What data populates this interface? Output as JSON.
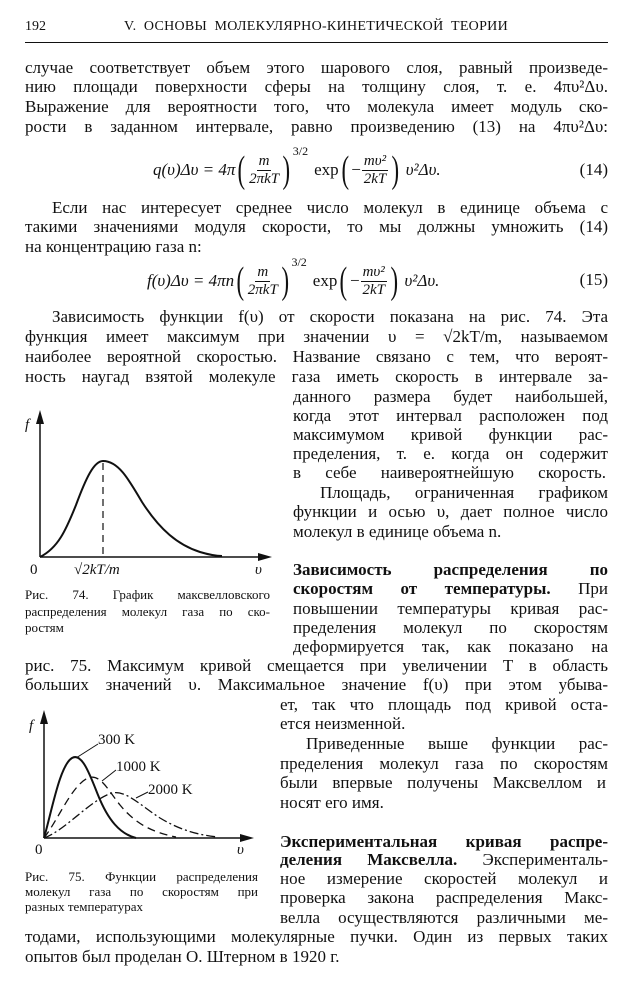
{
  "header": {
    "page_number": "192",
    "running_title": "V. ОСНОВЫ МОЛЕКУЛЯРНО-КИНЕТИЧЕСКОЙ ТЕОРИИ"
  },
  "p1": [
    "случае соответствует объем этого шарового слоя, равный произведе-",
    "нию площади поверхности сферы на толщину слоя, т. е. 4πυ²Δυ.",
    "Выражение для вероятности того, что молекула имеет модуль ско-",
    "рости в заданном интервале, равно произведению (13) на 4πυ²Δυ:"
  ],
  "eq14": {
    "lhs": "q(υ)Δυ = 4π",
    "frac1_num": "m",
    "frac1_den": "2πkT",
    "power": "3/2",
    "func": "exp",
    "sign": "−",
    "frac2_num": "mυ²",
    "frac2_den": "2kT",
    "tail": "υ²Δυ.",
    "number": "(14)"
  },
  "p2": [
    "Если нас интересует среднее число молекул в единице объема с",
    "такими значениями модуля скорости, то мы должны умножить (14)",
    "на концентрацию газа n:"
  ],
  "eq15": {
    "lhs": "f(υ)Δυ = 4πn",
    "frac1_num": "m",
    "frac1_den": "2πkT",
    "power": "3/2",
    "func": "exp",
    "sign": "−",
    "frac2_num": "mυ²",
    "frac2_den": "2kT",
    "tail": "υ²Δυ.",
    "number": "(15)"
  },
  "p3": [
    "Зависимость функции f(υ) от скорости показана на рис. 74. Эта",
    "функция имеет максимум при значении υ = √2kT/m, называемом",
    "наиболее вероятной скоростью. Название связано с тем, что вероят-",
    "ность наугад взятой молекуле газа иметь скорость в интервале за-",
    "данного размера будет наибольшей,",
    "когда этот интервал расположен под",
    "максимумом кривой функции рас-",
    "пределения, т. е. когда он содержит",
    "в себе наивероятнейшую скорость."
  ],
  "p4": [
    "Площадь, ограниченная графиком",
    "функции и осью υ, дает полное число",
    "молекул в единице объема n."
  ],
  "section1": {
    "heading_line1": "Зависимость распределения по",
    "heading_line2": "скоростям от температуры.",
    "lines": [
      " При",
      "повышении температуры кривая рас-",
      "пределения молекул по скоростям",
      "деформируется так, как показано на",
      "рис. 75. Максимум кривой смещается при увеличении T в область",
      "больших значений υ. Максимальное значение f(υ) при этом убыва-",
      "ет, так что площадь под кривой оста-",
      "ется неизменной."
    ]
  },
  "p5": [
    "Приведенные выше функции рас-",
    "пределения молекул газа по скоростям",
    "были впервые получены Максвеллом и",
    "носят его имя."
  ],
  "section2": {
    "heading_line1": "Экспериментальная кривая распре-",
    "heading_line2": "деления Максвелла.",
    "lines": [
      " Эксперименталь-",
      "ное измерение скоростей молекул и",
      "проверка закона распределения Макс-",
      "велла осуществляются различными ме-",
      "тодами, использующими молекулярные пучки. Один из первых таких",
      "опытов был проделан О. Штерном в 1920 г."
    ]
  },
  "fig74": {
    "y_label": "f",
    "x_label": "υ",
    "origin": "0",
    "peak_label": "√2kT/m",
    "caption": [
      "Рис. 74. График максвелловского",
      "распределения молекул газа по ско-",
      "ростям"
    ]
  },
  "fig75": {
    "y_label": "f",
    "x_label": "υ",
    "origin": "0",
    "curves": [
      {
        "label": "300 K",
        "style": "solid"
      },
      {
        "label": "1000 K",
        "style": "dashed"
      },
      {
        "label": "2000 K",
        "style": "dash-dot"
      }
    ],
    "caption": [
      "Рис. 75. Функции распределения",
      "молекул газа по скоростям при",
      "разных температурах"
    ]
  }
}
